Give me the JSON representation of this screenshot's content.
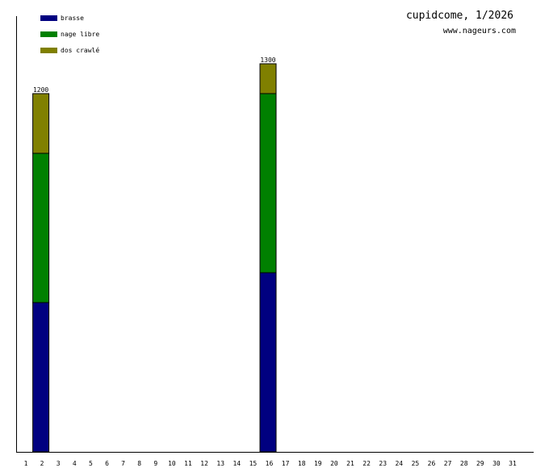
{
  "chart_data": {
    "type": "bar",
    "stacked": true,
    "title": "cupidcome, 1/2026",
    "subtitle": "www.nageurs.com",
    "xlabel": "",
    "ylabel": "",
    "categories": [
      "1",
      "2",
      "3",
      "4",
      "5",
      "6",
      "7",
      "8",
      "9",
      "10",
      "11",
      "12",
      "13",
      "14",
      "15",
      "16",
      "17",
      "18",
      "19",
      "20",
      "21",
      "22",
      "23",
      "24",
      "25",
      "26",
      "27",
      "28",
      "29",
      "30",
      "31"
    ],
    "series": [
      {
        "name": "brasse",
        "color": "#000080",
        "values": {
          "2": 500,
          "16": 600
        }
      },
      {
        "name": "nage libre",
        "color": "#008000",
        "values": {
          "2": 500,
          "16": 600
        }
      },
      {
        "name": "dos crawlé",
        "color": "#808000",
        "values": {
          "2": 200,
          "16": 100
        }
      }
    ],
    "totals": {
      "2": "1200",
      "16": "1300"
    },
    "ylim": [
      0,
      1457
    ],
    "grid": false,
    "legend_placement": "top-left"
  }
}
